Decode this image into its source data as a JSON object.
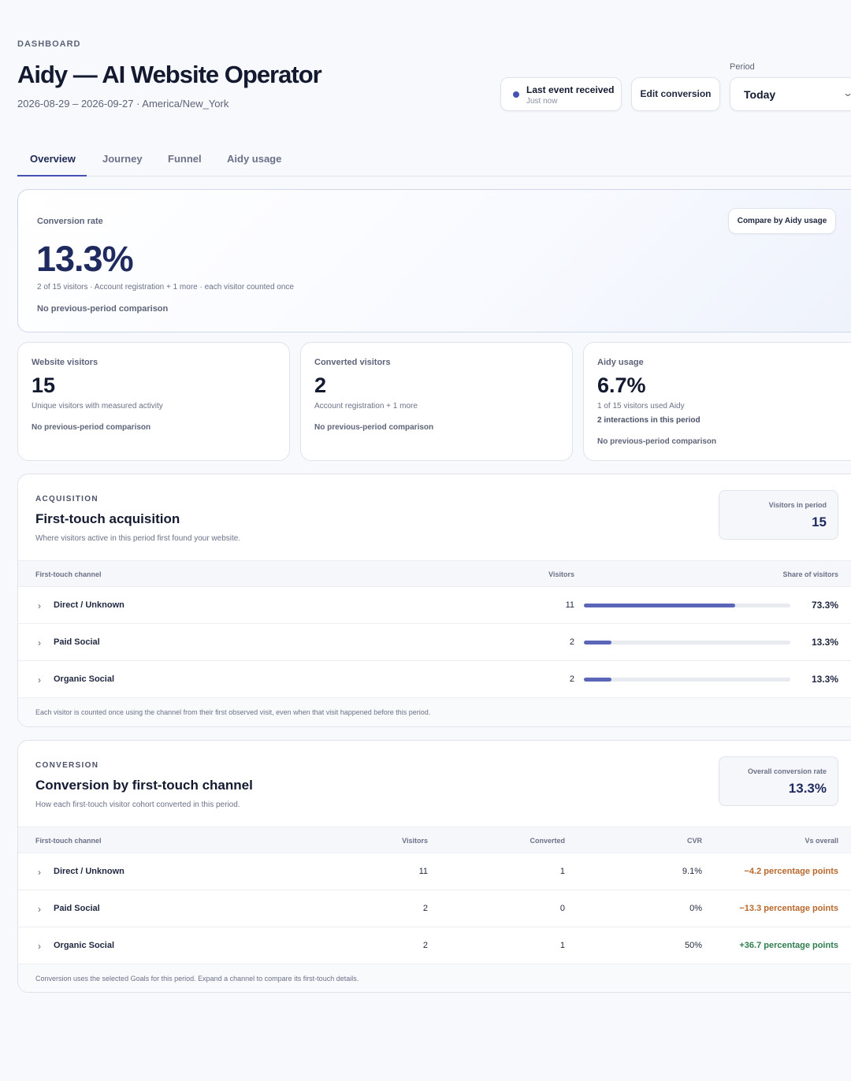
{
  "header": {
    "eyebrow": "DASHBOARD",
    "title": "Aidy — AI Website Operator",
    "subtitle": "2026-08-29 – 2026-09-27 · America/New_York",
    "last_event": {
      "title": "Last event received",
      "time": "Just now"
    },
    "edit_conversion": "Edit conversion",
    "period": {
      "label": "Period",
      "value": "Today"
    }
  },
  "tabs": [
    "Overview",
    "Journey",
    "Funnel",
    "Aidy usage"
  ],
  "hero": {
    "label": "Conversion rate",
    "value": "13.3%",
    "description": "2 of 15 visitors · Account registration + 1 more · each visitor counted once",
    "comparison": "No previous-period comparison",
    "compare_button": "Compare by Aidy usage"
  },
  "stats": [
    {
      "label": "Website visitors",
      "value": "15",
      "sub": "Unique visitors with measured activity",
      "comparison": "No previous-period comparison"
    },
    {
      "label": "Converted visitors",
      "value": "2",
      "sub": "Account registration + 1 more",
      "comparison": "No previous-period comparison"
    },
    {
      "label": "Aidy usage",
      "value": "6.7%",
      "sub": "1 of 15 visitors used Aidy",
      "sub2": "2 interactions in this period",
      "comparison": "No previous-period comparison"
    }
  ],
  "acquisition": {
    "eyebrow": "ACQUISITION",
    "title": "First-touch acquisition",
    "description": "Where visitors active in this period first found your website.",
    "kpi": {
      "label": "Visitors in period",
      "value": "15"
    },
    "columns": [
      "First-touch channel",
      "Visitors",
      "Share of visitors"
    ],
    "rows": [
      {
        "channel": "Direct / Unknown",
        "visitors": "11",
        "share": "73.3%",
        "share_value": 73.3
      },
      {
        "channel": "Paid Social",
        "visitors": "2",
        "share": "13.3%",
        "share_value": 13.3
      },
      {
        "channel": "Organic Social",
        "visitors": "2",
        "share": "13.3%",
        "share_value": 13.3
      }
    ],
    "footnote": "Each visitor is counted once using the channel from their first observed visit, even when that visit happened before this period."
  },
  "conversion": {
    "eyebrow": "CONVERSION",
    "title": "Conversion by first-touch channel",
    "description": "How each first-touch visitor cohort converted in this period.",
    "kpi": {
      "label": "Overall conversion rate",
      "value": "13.3%"
    },
    "columns": [
      "First-touch channel",
      "Visitors",
      "Converted",
      "CVR",
      "Vs overall"
    ],
    "rows": [
      {
        "channel": "Direct / Unknown",
        "visitors": "11",
        "converted": "1",
        "cvr": "9.1%",
        "vs": "−4.2 percentage points",
        "tone": "neg"
      },
      {
        "channel": "Paid Social",
        "visitors": "2",
        "converted": "0",
        "cvr": "0%",
        "vs": "−13.3 percentage points",
        "tone": "neg"
      },
      {
        "channel": "Organic Social",
        "visitors": "2",
        "converted": "1",
        "cvr": "50%",
        "vs": "+36.7 percentage points",
        "tone": "pos"
      }
    ],
    "footnote": "Conversion uses the selected Goals for this period. Expand a channel to compare its first-touch details."
  },
  "colors": {
    "accent": "#4652b3",
    "bar": "#5b66b8",
    "negative": "#b8682c",
    "positive": "#2f7d4f"
  },
  "icons": {
    "expand": "chevron-right-icon",
    "dropdown": "chevron-down-icon",
    "status": "status-dot-icon"
  }
}
